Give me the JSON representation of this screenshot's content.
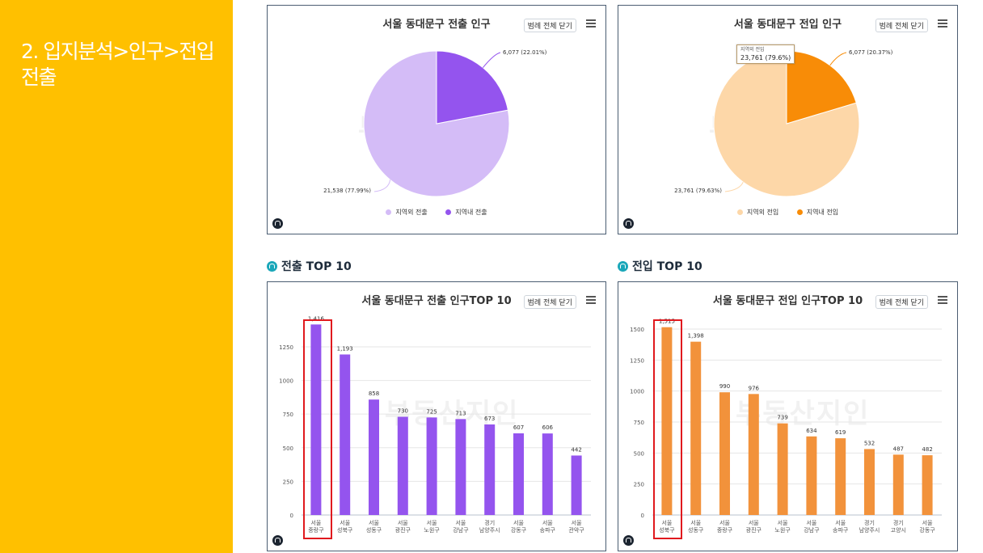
{
  "sidebar": {
    "title_line1": "2. 입지분석>인구>전입",
    "title_line2": "전출",
    "bg": "#ffc000"
  },
  "watermark": "부동산지인",
  "controls": {
    "legend_toggle": "범례 전체 닫기"
  },
  "sections": {
    "out_top10": "전출 TOP 10",
    "in_top10": "전입 TOP 10"
  },
  "pie_out": {
    "title": "서울 동대문구 전출 인구",
    "slices": [
      {
        "name": "지역외 전출",
        "value": 21538,
        "label": "21,538 (77.99%)",
        "color": "#d4bcf7"
      },
      {
        "name": "지역내 전출",
        "value": 6077,
        "label": "6,077 (22.01%)",
        "color": "#9454ee"
      }
    ]
  },
  "pie_in": {
    "title": "서울 동대문구 전입 인구",
    "slices": [
      {
        "name": "지역외 전입",
        "value": 23761,
        "label": "23,761 (79.63%)",
        "color": "#fdd7a8"
      },
      {
        "name": "지역내 전입",
        "value": 6077,
        "label": "6,077 (20.37%)",
        "color": "#f88c07"
      }
    ],
    "tooltip": {
      "name": "지역외 전입",
      "value": "23,761 (79.6%)"
    }
  },
  "chart_data": [
    {
      "type": "bar",
      "title": "서울 동대문구 전출 인구TOP 10",
      "categories": [
        "서울 중랑구",
        "서울 성북구",
        "서울 성동구",
        "서울 광진구",
        "서울 노원구",
        "서울 강남구",
        "경기 남양주시",
        "서울 강동구",
        "서울 송파구",
        "서울 관악구"
      ],
      "values": [
        1416,
        1193,
        858,
        730,
        725,
        713,
        673,
        607,
        606,
        442
      ],
      "value_labels": [
        "1,416",
        "1,193",
        "858",
        "730",
        "725",
        "713",
        "673",
        "607",
        "606",
        "442"
      ],
      "ylim": [
        0,
        1400
      ],
      "yticks": [
        "0",
        "250",
        "500",
        "750",
        "1000",
        "1250"
      ],
      "ytick_values": [
        0,
        250,
        500,
        750,
        1000,
        1250
      ],
      "color": "#9454ee",
      "grid": true,
      "highlight_index": 0
    },
    {
      "type": "bar",
      "title": "서울 동대문구 전입 인구TOP 10",
      "categories": [
        "서울 성북구",
        "서울 성동구",
        "서울 중랑구",
        "서울 광진구",
        "서울 노원구",
        "서울 강남구",
        "서울 송파구",
        "경기 남양주시",
        "경기 고양시",
        "서울 강동구"
      ],
      "values": [
        1515,
        1398,
        990,
        976,
        739,
        634,
        619,
        532,
        487,
        482
      ],
      "value_labels": [
        "1,515",
        "1,398",
        "990",
        "976",
        "739",
        "634",
        "619",
        "532",
        "487",
        "482"
      ],
      "ylim": [
        0,
        1500
      ],
      "yticks": [
        "0",
        "250",
        "500",
        "750",
        "1000",
        "1250",
        "1500"
      ],
      "ytick_values": [
        0,
        250,
        500,
        750,
        1000,
        1250,
        1500
      ],
      "color": "#f2923b",
      "grid": true,
      "highlight_index": 0
    }
  ]
}
